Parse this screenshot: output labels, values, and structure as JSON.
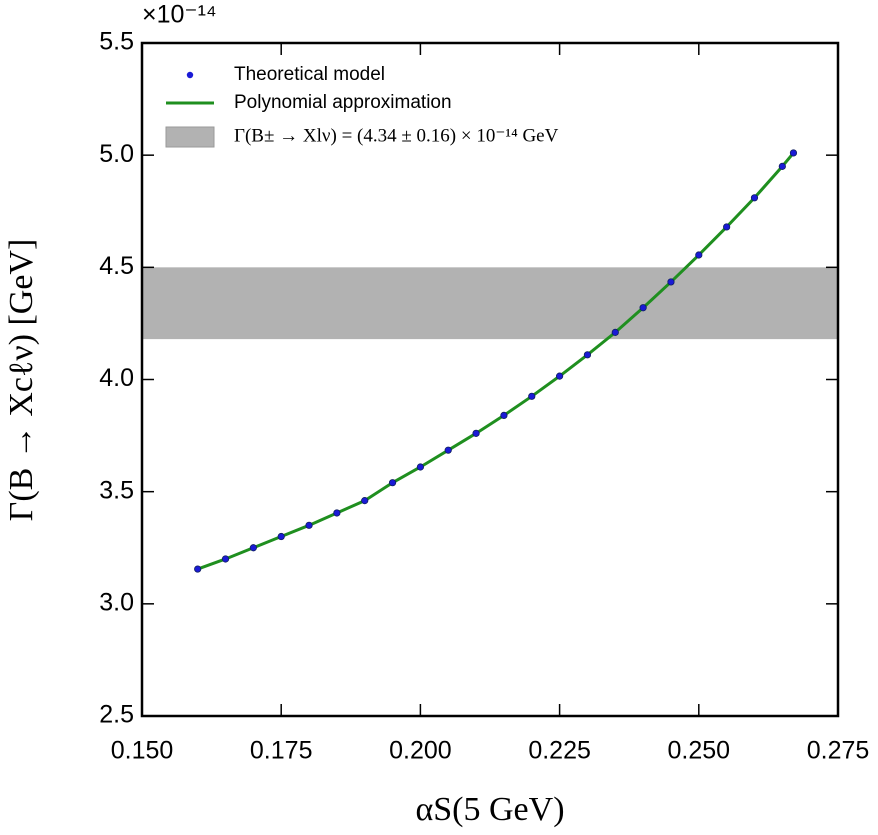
{
  "chart_data": {
    "type": "line",
    "axis_multiplier": "×10⁻¹⁴",
    "xlabel": "αS(5 GeV)",
    "ylabel": "Γ(B → Xcℓν) [GeV]",
    "xlim": [
      0.15,
      0.275
    ],
    "ylim": [
      2.5,
      5.5
    ],
    "xticks": [
      {
        "value": 0.15,
        "label": "0.150"
      },
      {
        "value": 0.175,
        "label": "0.175"
      },
      {
        "value": 0.2,
        "label": "0.200"
      },
      {
        "value": 0.225,
        "label": "0.225"
      },
      {
        "value": 0.25,
        "label": "0.250"
      },
      {
        "value": 0.275,
        "label": "0.275"
      }
    ],
    "yticks": [
      2.5,
      {
        "value": 3,
        "label": "3.0"
      },
      3.5,
      {
        "value": 4,
        "label": "4.0"
      },
      4.5,
      {
        "value": 5,
        "label": "5.0"
      },
      5.5
    ],
    "x": [
      0.16,
      0.165,
      0.17,
      0.175,
      0.18,
      0.185,
      0.19,
      0.195,
      0.2,
      0.205,
      0.21,
      0.215,
      0.22,
      0.225,
      0.23,
      0.235,
      0.24,
      0.245,
      0.25,
      0.255,
      0.26,
      0.265,
      0.267
    ],
    "series": [
      {
        "name": "Theoretical model",
        "mode": "markers",
        "color": "#1a1ad6",
        "values": [
          3.155,
          3.2,
          3.25,
          3.3,
          3.35,
          3.405,
          3.46,
          3.54,
          3.61,
          3.685,
          3.76,
          3.84,
          3.925,
          4.015,
          4.11,
          4.21,
          4.32,
          4.435,
          4.555,
          4.68,
          4.81,
          4.95,
          5.01
        ]
      },
      {
        "name": "Polynomial approximation",
        "mode": "line",
        "color": "#1f8f1f",
        "values": [
          3.155,
          3.2,
          3.25,
          3.3,
          3.35,
          3.405,
          3.46,
          3.54,
          3.61,
          3.685,
          3.76,
          3.84,
          3.925,
          4.015,
          4.11,
          4.21,
          4.32,
          4.435,
          4.555,
          4.68,
          4.81,
          4.95,
          5.01
        ]
      }
    ],
    "band": {
      "name": "Γ(B± → Xlν) = (4.34 ± 0.16) × 10⁻¹⁴ GeV",
      "color": "#b2b2b2",
      "low": 4.18,
      "high": 4.5
    },
    "legend": "upper left"
  }
}
